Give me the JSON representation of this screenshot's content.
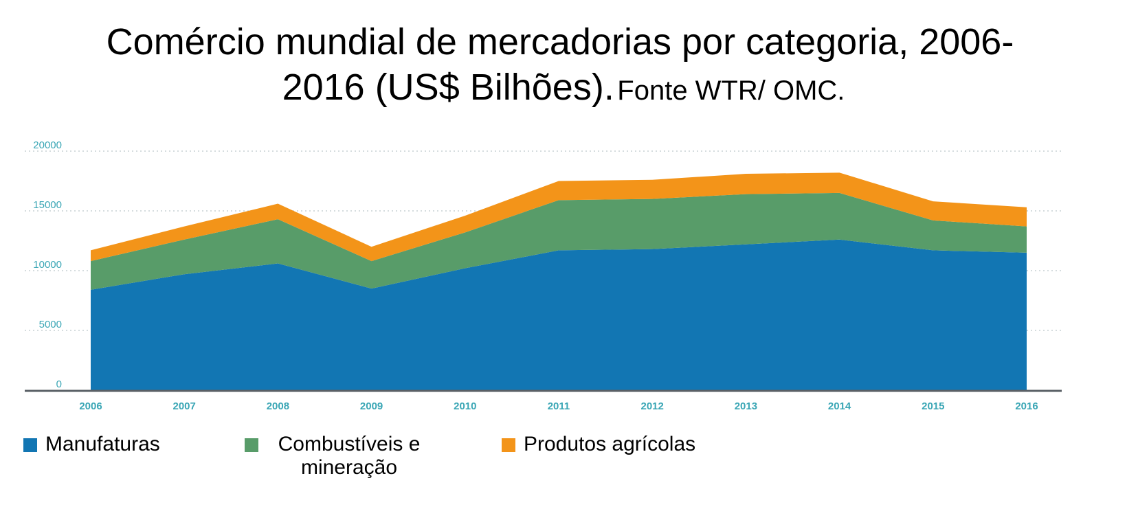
{
  "title": {
    "line1": "Comércio mundial de mercadorias por categoria, 2006-",
    "line2": "2016 (US$ Bilhões).",
    "source": "Fonte WTR/ OMC."
  },
  "chart_data": {
    "type": "area",
    "stacked": true,
    "x": [
      "2006",
      "2007",
      "2008",
      "2009",
      "2010",
      "2011",
      "2012",
      "2013",
      "2014",
      "2015",
      "2016"
    ],
    "series": [
      {
        "name": "Manufaturas",
        "color": "#1276b3",
        "values": [
          8400,
          9700,
          10600,
          8500,
          10200,
          11700,
          11800,
          12200,
          12600,
          11700,
          11500
        ]
      },
      {
        "name": "Combustíveis e mineração",
        "color": "#589c69",
        "values": [
          2400,
          2900,
          3700,
          2300,
          3000,
          4200,
          4200,
          4200,
          3900,
          2500,
          2200
        ]
      },
      {
        "name": "Produtos agrícolas",
        "color": "#f39419",
        "values": [
          900,
          1100,
          1300,
          1200,
          1400,
          1600,
          1600,
          1700,
          1700,
          1600,
          1600
        ]
      }
    ],
    "yticks": [
      0,
      5000,
      10000,
      15000,
      20000
    ],
    "ylim": [
      0,
      20000
    ],
    "grid": true,
    "legend": "bottom"
  },
  "legend": {
    "items": [
      {
        "label": "Manufaturas",
        "color": "#1276b3"
      },
      {
        "label": "Combustíveis e mineração",
        "color": "#589c69"
      },
      {
        "label": "Produtos agrícolas",
        "color": "#f39419"
      }
    ]
  }
}
